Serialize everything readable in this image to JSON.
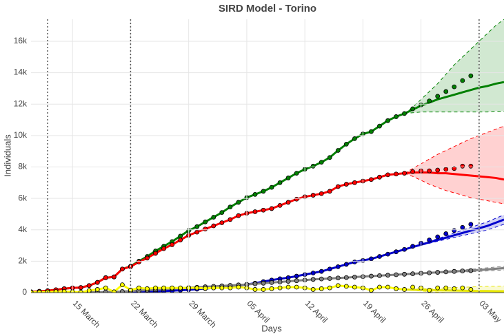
{
  "chart_data": {
    "type": "line",
    "title": "SIRD Model - Torino",
    "xlabel": "Days",
    "ylabel": "Individuals",
    "x": [
      "10 March",
      "11 March",
      "12 March",
      "13 March",
      "14 March",
      "15 March",
      "16 March",
      "17 March",
      "18 March",
      "19 March",
      "20 March",
      "21 March",
      "22 March",
      "23 March",
      "24 March",
      "25 March",
      "26 March",
      "27 March",
      "28 March",
      "29 March",
      "30 March",
      "31 March",
      "01 April",
      "02 April",
      "03 April",
      "04 April",
      "05 April",
      "06 April",
      "07 April",
      "08 April",
      "09 April",
      "10 April",
      "11 April",
      "12 April",
      "13 April",
      "14 April",
      "15 April",
      "16 April",
      "17 April",
      "18 April",
      "19 April",
      "20 April",
      "21 April",
      "22 April",
      "23 April",
      "24 April",
      "25 April",
      "26 April",
      "27 April",
      "28 April",
      "29 April",
      "30 April",
      "01 May",
      "02 May"
    ],
    "series": [
      {
        "color": "#008000",
        "values": [
          50,
          80,
          120,
          180,
          250,
          300,
          320,
          450,
          650,
          950,
          1000,
          1500,
          1680,
          2000,
          2300,
          2650,
          2950,
          3250,
          3600,
          3950,
          4200,
          4500,
          4800,
          5100,
          5450,
          5750,
          6050,
          6250,
          6450,
          6700,
          7000,
          7300,
          7600,
          7850,
          8050,
          8300,
          8600,
          9050,
          9450,
          9800,
          10100,
          10250,
          10600,
          10950,
          11200,
          11400,
          11700,
          11950,
          12200,
          12500,
          12800,
          13100,
          13500,
          13800
        ]
      },
      {
        "color": "#ff0000",
        "values": [
          50,
          80,
          120,
          180,
          250,
          300,
          320,
          450,
          650,
          950,
          1000,
          1500,
          1650,
          1950,
          2200,
          2500,
          2800,
          3050,
          3350,
          3650,
          3850,
          4050,
          4250,
          4450,
          4650,
          4900,
          5050,
          5150,
          5250,
          5350,
          5550,
          5750,
          5950,
          6100,
          6200,
          6300,
          6450,
          6750,
          6900,
          7000,
          7100,
          7200,
          7350,
          7500,
          7550,
          7600,
          7700,
          7750,
          7750,
          7800,
          7850,
          7900,
          8050,
          8050
        ]
      },
      {
        "color": "#0000cd",
        "values": [
          0,
          0,
          0,
          0,
          0,
          0,
          0,
          0,
          0,
          0,
          0,
          0,
          20,
          40,
          60,
          80,
          100,
          120,
          150,
          180,
          220,
          260,
          300,
          350,
          400,
          450,
          520,
          600,
          700,
          800,
          880,
          950,
          1050,
          1150,
          1250,
          1350,
          1500,
          1650,
          1800,
          1950,
          2050,
          2150,
          2300,
          2450,
          2600,
          2750,
          2950,
          3150,
          3350,
          3550,
          3750,
          3950,
          4150,
          4350
        ]
      },
      {
        "color": "#808080",
        "values": [
          0,
          0,
          0,
          0,
          5,
          10,
          15,
          20,
          30,
          40,
          50,
          70,
          100,
          130,
          160,
          190,
          220,
          250,
          280,
          310,
          340,
          370,
          400,
          430,
          460,
          490,
          520,
          560,
          600,
          640,
          680,
          720,
          760,
          800,
          840,
          870,
          900,
          930,
          960,
          990,
          1020,
          1050,
          1080,
          1110,
          1140,
          1170,
          1200,
          1230,
          1260,
          1290,
          1320,
          1350,
          1380,
          1400
        ]
      },
      {
        "color": "#ffff00",
        "values": [
          20,
          30,
          40,
          60,
          70,
          50,
          20,
          130,
          200,
          300,
          50,
          500,
          170,
          300,
          250,
          300,
          300,
          300,
          300,
          300,
          300,
          270,
          300,
          300,
          300,
          350,
          300,
          200,
          200,
          250,
          300,
          350,
          350,
          300,
          200,
          250,
          300,
          450,
          400,
          350,
          300,
          150,
          350,
          350,
          250,
          200,
          350,
          300,
          150,
          300,
          300,
          250,
          300,
          200
        ]
      }
    ],
    "forecast": {
      "x": [
        "24 April",
        "25 April",
        "26 April",
        "27 April",
        "28 April",
        "29 April",
        "30 April",
        "01 May",
        "02 May",
        "03 May",
        "04 May",
        "05 May",
        "06 May"
      ],
      "series": [
        {
          "color": "#008000",
          "values": [
            11400,
            11650,
            11900,
            12100,
            12300,
            12450,
            12600,
            12750,
            12900,
            13050,
            13150,
            13300,
            13400
          ],
          "upper": [
            11400,
            11800,
            12300,
            12800,
            13300,
            13900,
            14500,
            15000,
            15500,
            16000,
            16500,
            17000,
            17400
          ],
          "lower": [
            11400,
            11450,
            11500,
            11500,
            11500,
            11500,
            11500,
            11500,
            11500,
            11500,
            11500,
            11550,
            11550
          ]
        },
        {
          "color": "#ff0000",
          "values": [
            7600,
            7650,
            7650,
            7650,
            7600,
            7600,
            7550,
            7500,
            7450,
            7400,
            7350,
            7300,
            7200
          ],
          "upper": [
            7600,
            7900,
            8200,
            8500,
            8800,
            9050,
            9300,
            9550,
            9800,
            10000,
            10200,
            10400,
            10600
          ],
          "lower": [
            7600,
            7400,
            7150,
            6900,
            6700,
            6500,
            6350,
            6200,
            6050,
            5950,
            5850,
            5750,
            5650
          ]
        },
        {
          "color": "#0000cd",
          "values": [
            2750,
            2900,
            3050,
            3200,
            3350,
            3500,
            3650,
            3800,
            3950,
            4100,
            4250,
            4450,
            4650
          ],
          "upper": [
            2750,
            2920,
            3090,
            3260,
            3430,
            3610,
            3790,
            3970,
            4150,
            4330,
            4510,
            4730,
            4950
          ],
          "lower": [
            2750,
            2880,
            3010,
            3140,
            3270,
            3390,
            3510,
            3630,
            3750,
            3870,
            3990,
            4170,
            4350
          ]
        },
        {
          "color": "#808080",
          "values": [
            1170,
            1200,
            1230,
            1260,
            1290,
            1320,
            1350,
            1380,
            1410,
            1440,
            1480,
            1520,
            1560
          ],
          "upper": [
            1170,
            1210,
            1250,
            1290,
            1330,
            1370,
            1410,
            1450,
            1490,
            1530,
            1580,
            1630,
            1680
          ],
          "lower": [
            1170,
            1190,
            1210,
            1230,
            1250,
            1270,
            1290,
            1310,
            1330,
            1350,
            1380,
            1410,
            1440
          ]
        },
        {
          "color": "#e6e600",
          "values": [
            200,
            180,
            170,
            160,
            150,
            140,
            130,
            120,
            110,
            100,
            100,
            90,
            90
          ],
          "upper": [
            200,
            220,
            240,
            260,
            280,
            300,
            320,
            340,
            360,
            380,
            400,
            410,
            420
          ],
          "lower": [
            200,
            140,
            100,
            60,
            30,
            0,
            0,
            0,
            0,
            0,
            0,
            0,
            0
          ]
        }
      ]
    },
    "vlines": [
      "12 March",
      "22 March",
      "03 May"
    ],
    "xlim": [
      "10 March",
      "06 May"
    ],
    "xticks": [
      "15 March",
      "22 March",
      "29 March",
      "05 April",
      "12 April",
      "19 April",
      "26 April",
      "03 May"
    ],
    "ylim": [
      0,
      17400
    ],
    "yticks": [
      0,
      {
        "value": 2000,
        "label": "2k"
      },
      {
        "value": 4000,
        "label": "4k"
      },
      {
        "value": 6000,
        "label": "6k"
      },
      {
        "value": 8000,
        "label": "8k"
      },
      {
        "value": 10000,
        "label": "10k"
      },
      {
        "value": 12000,
        "label": "12k"
      },
      {
        "value": 14000,
        "label": "14k"
      },
      {
        "value": 16000,
        "label": "16k"
      }
    ],
    "grid": true
  }
}
